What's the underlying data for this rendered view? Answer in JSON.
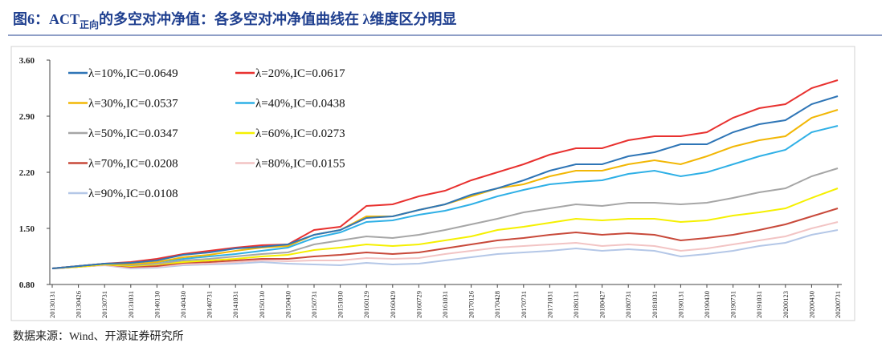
{
  "chart_data": {
    "type": "line",
    "title": "图6：ACT",
    "title_subscript": "正向",
    "title_rest": "的多空对冲净值：各多空对冲净值曲线在 λ维度区分明显",
    "source": "数据来源：Wind、开源证券研究所",
    "categories": [
      "20130131",
      "20130426",
      "20130731",
      "20131031",
      "20140130",
      "20140430",
      "20140731",
      "20141031",
      "20150130",
      "20150430",
      "20150731",
      "20151030",
      "20160129",
      "20160429",
      "20160729",
      "20161031",
      "20170126",
      "20170428",
      "20170731",
      "20171031",
      "20180131",
      "20180427",
      "20180731",
      "20181031",
      "20190131",
      "20190430",
      "20190731",
      "20191031",
      "20200123",
      "20200430",
      "20200731"
    ],
    "ylim": [
      0.8,
      3.6
    ],
    "yticks": [
      {
        "value": 0.8,
        "label": "0.80"
      },
      {
        "value": 1.5,
        "label": "1.50"
      },
      {
        "value": 2.2,
        "label": "2.20"
      },
      {
        "value": 2.9,
        "label": "2.90"
      },
      {
        "value": 3.6,
        "label": "3.60"
      }
    ],
    "legend": "upper left",
    "series": [
      {
        "name": "λ=10%,IC=0.0649",
        "color": "#2e75b6",
        "values": [
          1.0,
          1.03,
          1.06,
          1.07,
          1.1,
          1.17,
          1.2,
          1.25,
          1.27,
          1.3,
          1.42,
          1.48,
          1.63,
          1.65,
          1.73,
          1.8,
          1.92,
          2.0,
          2.1,
          2.22,
          2.3,
          2.3,
          2.4,
          2.45,
          2.55,
          2.55,
          2.7,
          2.8,
          2.85,
          3.05,
          3.15
        ]
      },
      {
        "name": "λ=20%,IC=0.0617",
        "color": "#e8312f",
        "values": [
          1.0,
          1.03,
          1.06,
          1.08,
          1.12,
          1.18,
          1.22,
          1.26,
          1.29,
          1.3,
          1.48,
          1.52,
          1.78,
          1.8,
          1.9,
          1.97,
          2.1,
          2.2,
          2.3,
          2.42,
          2.5,
          2.5,
          2.6,
          2.65,
          2.65,
          2.7,
          2.88,
          3.0,
          3.05,
          3.25,
          3.35
        ]
      },
      {
        "name": "λ=30%,IC=0.0537",
        "color": "#f2b705",
        "values": [
          1.0,
          1.03,
          1.06,
          1.05,
          1.08,
          1.14,
          1.17,
          1.22,
          1.26,
          1.28,
          1.42,
          1.48,
          1.65,
          1.65,
          1.73,
          1.8,
          1.9,
          2.0,
          2.05,
          2.15,
          2.22,
          2.22,
          2.3,
          2.35,
          2.3,
          2.4,
          2.52,
          2.6,
          2.65,
          2.88,
          2.98
        ]
      },
      {
        "name": "λ=40%,IC=0.0438",
        "color": "#2fb0e6",
        "values": [
          1.0,
          1.03,
          1.06,
          1.05,
          1.08,
          1.12,
          1.15,
          1.18,
          1.22,
          1.26,
          1.38,
          1.45,
          1.58,
          1.6,
          1.67,
          1.72,
          1.8,
          1.9,
          1.98,
          2.05,
          2.08,
          2.1,
          2.18,
          2.22,
          2.15,
          2.2,
          2.3,
          2.4,
          2.48,
          2.7,
          2.78
        ]
      },
      {
        "name": "λ=50%,IC=0.0347",
        "color": "#a6a6a6",
        "values": [
          1.0,
          1.03,
          1.06,
          1.04,
          1.06,
          1.1,
          1.12,
          1.15,
          1.18,
          1.2,
          1.3,
          1.35,
          1.4,
          1.38,
          1.42,
          1.48,
          1.55,
          1.62,
          1.7,
          1.75,
          1.8,
          1.78,
          1.82,
          1.82,
          1.8,
          1.82,
          1.88,
          1.95,
          2.0,
          2.15,
          2.25
        ]
      },
      {
        "name": "λ=60%,IC=0.0273",
        "color": "#f5f000",
        "values": [
          1.0,
          1.02,
          1.05,
          1.03,
          1.05,
          1.08,
          1.1,
          1.12,
          1.15,
          1.17,
          1.23,
          1.26,
          1.3,
          1.28,
          1.3,
          1.35,
          1.4,
          1.48,
          1.52,
          1.57,
          1.62,
          1.6,
          1.62,
          1.62,
          1.58,
          1.6,
          1.66,
          1.7,
          1.75,
          1.88,
          2.0
        ]
      },
      {
        "name": "λ=70%,IC=0.0208",
        "color": "#c8493a",
        "values": [
          1.0,
          1.02,
          1.05,
          1.02,
          1.03,
          1.07,
          1.08,
          1.1,
          1.12,
          1.12,
          1.15,
          1.17,
          1.2,
          1.18,
          1.2,
          1.25,
          1.3,
          1.35,
          1.38,
          1.42,
          1.45,
          1.42,
          1.44,
          1.42,
          1.35,
          1.38,
          1.42,
          1.48,
          1.55,
          1.65,
          1.75
        ]
      },
      {
        "name": "λ=80%,IC=0.0155",
        "color": "#f2c4c4",
        "values": [
          1.0,
          1.02,
          1.04,
          1.01,
          1.02,
          1.05,
          1.06,
          1.08,
          1.1,
          1.09,
          1.1,
          1.1,
          1.13,
          1.12,
          1.13,
          1.18,
          1.22,
          1.26,
          1.28,
          1.3,
          1.32,
          1.28,
          1.3,
          1.28,
          1.22,
          1.25,
          1.3,
          1.35,
          1.4,
          1.5,
          1.58
        ]
      },
      {
        "name": "λ=90%,IC=0.0108",
        "color": "#b4c7e7",
        "values": [
          1.0,
          1.02,
          1.04,
          1.0,
          1.01,
          1.04,
          1.05,
          1.06,
          1.08,
          1.06,
          1.05,
          1.04,
          1.07,
          1.05,
          1.06,
          1.1,
          1.14,
          1.18,
          1.2,
          1.22,
          1.25,
          1.22,
          1.24,
          1.22,
          1.15,
          1.18,
          1.22,
          1.28,
          1.32,
          1.42,
          1.48
        ]
      }
    ]
  }
}
